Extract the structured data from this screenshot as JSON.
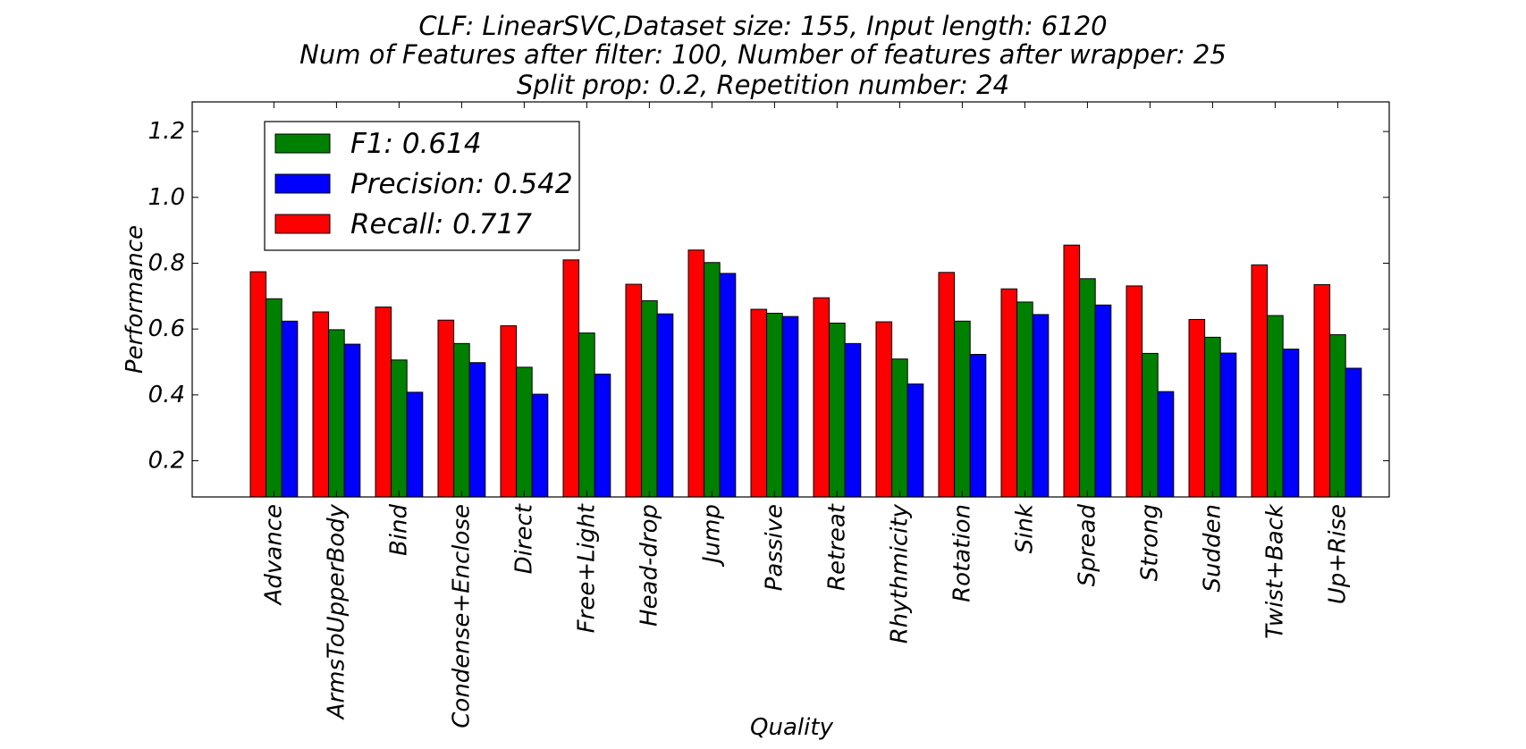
{
  "chart_data": {
    "type": "bar",
    "title_lines": [
      "CLF: LinearSVC,Dataset size: 155, Input length: 6120",
      "Num of Features after filter: 100, Number of features after wrapper: 25",
      "Split prop: 0.2, Repetition number: 24"
    ],
    "xlabel": "Quality",
    "ylabel": "Performance",
    "ylim": [
      0.09,
      1.29
    ],
    "yticks": [
      0.2,
      0.4,
      0.6,
      0.8,
      1.0,
      1.2
    ],
    "ytick_labels": [
      "0.2",
      "0.4",
      "0.6",
      "0.8",
      "1.0",
      "1.2"
    ],
    "grid": false,
    "legend_position": "top-left",
    "categories": [
      "Advance",
      "ArmsToUpperBody",
      "Bind",
      "Condense+Enclose",
      "Direct",
      "Free+Light",
      "Head-drop",
      "Jump",
      "Passive",
      "Retreat",
      "Rhythmicity",
      "Rotation",
      "Sink",
      "Spread",
      "Strong",
      "Sudden",
      "Twist+Back",
      "Up+Rise"
    ],
    "series": [
      {
        "name": "Recall: 0.717",
        "color": "#ff0000",
        "values": [
          0.774,
          0.652,
          0.667,
          0.627,
          0.61,
          0.81,
          0.736,
          0.84,
          0.66,
          0.695,
          0.622,
          0.772,
          0.722,
          0.855,
          0.731,
          0.629,
          0.795,
          0.735
        ]
      },
      {
        "name": "F1: 0.614",
        "color": "#008000",
        "values": [
          0.692,
          0.598,
          0.506,
          0.556,
          0.484,
          0.588,
          0.686,
          0.802,
          0.648,
          0.618,
          0.509,
          0.624,
          0.682,
          0.753,
          0.526,
          0.575,
          0.641,
          0.583
        ]
      },
      {
        "name": "Precision: 0.542",
        "color": "#0000ff",
        "values": [
          0.624,
          0.554,
          0.408,
          0.498,
          0.402,
          0.463,
          0.646,
          0.769,
          0.638,
          0.556,
          0.433,
          0.523,
          0.644,
          0.673,
          0.41,
          0.527,
          0.539,
          0.481
        ]
      }
    ],
    "legend_order": [
      "F1: 0.614",
      "Precision: 0.542",
      "Recall: 0.717"
    ]
  }
}
